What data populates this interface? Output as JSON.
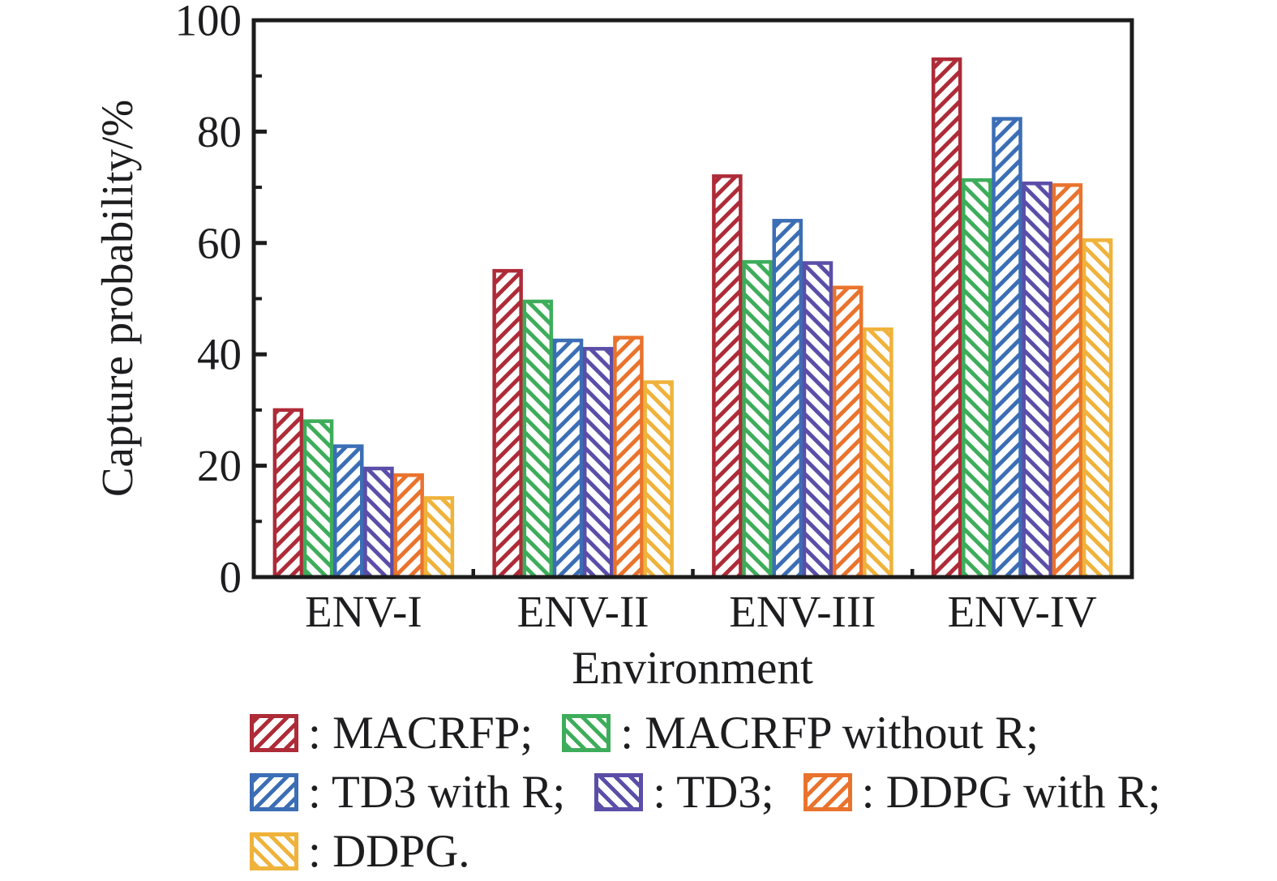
{
  "chart_data": {
    "type": "bar",
    "title": "",
    "xlabel": "Environment",
    "ylabel": "Capture probability/%",
    "ylim": [
      0,
      100
    ],
    "y_major_ticks": [
      0,
      20,
      40,
      60,
      80,
      100
    ],
    "y_minor_ticks": [
      10,
      30,
      50,
      70,
      90
    ],
    "grid": false,
    "legend_position": "below-left",
    "categories": [
      "ENV-I",
      "ENV-II",
      "ENV-III",
      "ENV-IV"
    ],
    "series": [
      {
        "name": "MACRFP",
        "color": "#AE2B38",
        "hatch": "/",
        "values": [
          30,
          55,
          72,
          93
        ]
      },
      {
        "name": "MACRFP without R",
        "color": "#3EAD5B",
        "hatch": "\\",
        "values": [
          28,
          49.5,
          56.6,
          71.3
        ]
      },
      {
        "name": "TD3 with R",
        "color": "#3B6EB5",
        "hatch": "/",
        "values": [
          23.5,
          42.5,
          64,
          82.3
        ]
      },
      {
        "name": "TD3",
        "color": "#5B4EA8",
        "hatch": "\\",
        "values": [
          19.5,
          41,
          56.4,
          70.7
        ]
      },
      {
        "name": "DDPG with R",
        "color": "#E9732D",
        "hatch": "/",
        "values": [
          18.3,
          43,
          52,
          70.4
        ]
      },
      {
        "name": "DDPG",
        "color": "#EFB23B",
        "hatch": "\\",
        "values": [
          14.2,
          35,
          44.5,
          60.5
        ]
      }
    ]
  },
  "legend": {
    "rows": [
      [
        {
          "series": "MACRFP",
          "label": ": MACRFP;"
        },
        {
          "series": "MACRFP without R",
          "label": ": MACRFP without R;"
        }
      ],
      [
        {
          "series": "TD3 with R",
          "label": ": TD3 with R;"
        },
        {
          "series": "TD3",
          "label": ": TD3;"
        },
        {
          "series": "DDPG with R",
          "label": ": DDPG with R;"
        }
      ],
      [
        {
          "series": "DDPG",
          "label": ": DDPG."
        }
      ]
    ]
  },
  "colors": {
    "axis": "#1c1c1c",
    "text": "#1d1d1f",
    "background": "#ffffff"
  }
}
